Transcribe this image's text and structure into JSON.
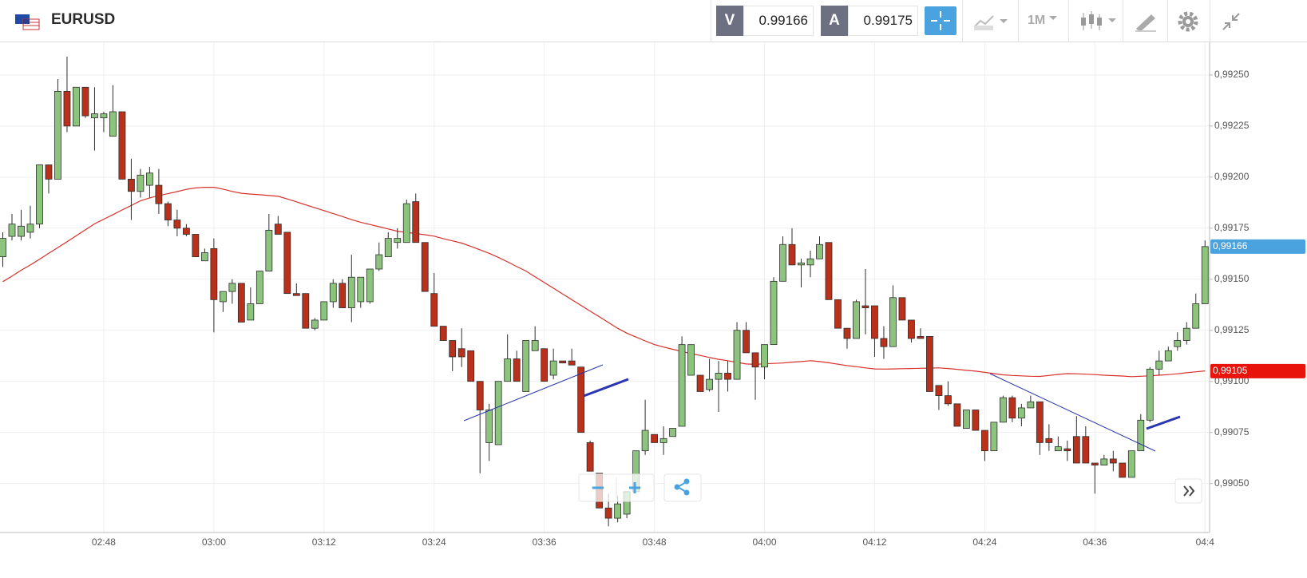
{
  "header": {
    "symbol": "EURUSD",
    "bid_label": "V",
    "bid": "0.99166",
    "ask_label": "A",
    "ask": "0.99175",
    "timeframe": "1M"
  },
  "chart_data": {
    "type": "candlestick",
    "categories": [
      null,
      null,
      null,
      null,
      null,
      null,
      null,
      null,
      null,
      null,
      null,
      "02:48",
      null,
      null,
      null,
      null,
      null,
      null,
      null,
      null,
      null,
      null,
      null,
      "03:00",
      null,
      null,
      null,
      null,
      null,
      null,
      null,
      null,
      null,
      null,
      null,
      "03:12",
      null,
      null,
      null,
      null,
      null,
      null,
      null,
      null,
      null,
      null,
      null,
      "03:24",
      null,
      null,
      null,
      null,
      null,
      null,
      null,
      null,
      null,
      null,
      null,
      "03:36",
      null,
      null,
      null,
      null,
      null,
      null,
      null,
      null,
      null,
      null,
      null,
      "03:48",
      null,
      null,
      null,
      null,
      null,
      null,
      null,
      null,
      null,
      null,
      null,
      "04:00",
      null,
      null,
      null,
      null,
      null,
      null,
      null,
      null,
      null,
      null,
      null,
      "04:12",
      null,
      null,
      null,
      null,
      null,
      null,
      null,
      null,
      null,
      null,
      null,
      "04:24",
      null,
      null,
      null,
      null,
      null,
      null,
      null,
      null,
      null,
      null,
      null,
      "04:36",
      null,
      null,
      null,
      null,
      null,
      null,
      null,
      null,
      null,
      null,
      null,
      "04:4"
    ],
    "open": [
      0.99161,
      0.99171,
      0.99171,
      0.99173,
      0.99177,
      0.99206,
      0.99199,
      0.99242,
      0.99225,
      0.99244,
      0.99229,
      0.99229,
      0.9922,
      0.99232,
      0.99199,
      0.99193,
      0.99196,
      0.99196,
      0.99187,
      0.99179,
      0.99175,
      0.99172,
      0.99159,
      0.99165,
      0.99139,
      0.99144,
      0.99148,
      0.9913,
      0.99138,
      0.99154,
      0.99177,
      0.99173,
      0.99143,
      0.99143,
      0.99126,
      0.9913,
      0.99139,
      0.99148,
      0.99136,
      0.99139,
      0.99139,
      0.99155,
      0.99161,
      0.99168,
      0.99168,
      0.99188,
      0.99168,
      0.99143,
      0.99127,
      0.9912,
      0.99116,
      0.99115,
      0.991,
      0.9907,
      0.99069,
      0.991,
      0.99111,
      0.99095,
      0.99115,
      0.99116,
      0.99103,
      0.9911,
      0.9911,
      0.99107,
      0.9907,
      0.99055,
      0.99038,
      0.99033,
      0.99035,
      0.99046,
      0.99066,
      0.99074,
      0.9907,
      0.99073,
      0.99078,
      0.99103,
      0.99103,
      0.99096,
      0.99101,
      0.99104,
      0.99101,
      0.99125,
      0.99114,
      0.99107,
      0.99118,
      0.99149,
      0.99167,
      0.99157,
      0.99157,
      0.9916,
      0.99168,
      0.9914,
      0.99126,
      0.99121,
      0.99137,
      0.99137,
      0.99121,
      0.99117,
      0.99141,
      0.9913,
      0.99122,
      0.99122,
      0.99098,
      0.99093,
      0.99089,
      0.99077,
      0.99086,
      0.99076,
      0.99066,
      0.9908,
      0.99092,
      0.99082,
      0.99087,
      0.9909,
      0.99072,
      0.99066,
      0.99067,
      0.99073,
      0.99073,
      0.9906,
      0.99059,
      0.99062,
      0.9906,
      0.99053,
      0.99066,
      0.99081,
      0.99106,
      0.9911,
      0.99117,
      0.9912,
      0.99126,
      0.99138
    ],
    "high": [
      0.99173,
      0.99182,
      0.99184,
      0.99186,
      0.99206,
      0.99206,
      0.99248,
      0.99259,
      0.99244,
      0.99244,
      0.99244,
      0.99232,
      0.99245,
      0.99232,
      0.99209,
      0.99204,
      0.99205,
      0.99204,
      0.99188,
      0.99184,
      0.99177,
      0.99172,
      0.99165,
      0.9917,
      0.99144,
      0.9915,
      0.99148,
      0.99146,
      0.99154,
      0.99182,
      0.99181,
      0.99173,
      0.99148,
      0.99143,
      0.99131,
      0.99139,
      0.9915,
      0.9915,
      0.99162,
      0.99151,
      0.99155,
      0.99168,
      0.99173,
      0.99175,
      0.99189,
      0.99192,
      0.99168,
      0.99153,
      0.99127,
      0.9912,
      0.99126,
      0.99115,
      0.991,
      0.99089,
      0.991,
      0.99123,
      0.99115,
      0.9912,
      0.99127,
      0.99116,
      0.99116,
      0.9911,
      0.99116,
      0.99107,
      0.99071,
      0.99055,
      0.99045,
      0.99044,
      0.99046,
      0.99066,
      0.99091,
      0.99074,
      0.99078,
      0.99077,
      0.99122,
      0.99118,
      0.99103,
      0.99111,
      0.9911,
      0.9911,
      0.99129,
      0.99129,
      0.99114,
      0.99118,
      0.99151,
      0.99171,
      0.99175,
      0.9916,
      0.99164,
      0.99171,
      0.99168,
      0.9914,
      0.99126,
      0.9914,
      0.99155,
      0.99137,
      0.99127,
      0.99147,
      0.99141,
      0.9913,
      0.99126,
      0.99122,
      0.99098,
      0.991,
      0.99089,
      0.99086,
      0.99086,
      0.99076,
      0.9908,
      0.99093,
      0.99093,
      0.99089,
      0.99093,
      0.9909,
      0.99079,
      0.99073,
      0.99071,
      0.99083,
      0.99078,
      0.9906,
      0.99064,
      0.99066,
      0.9906,
      0.99066,
      0.99084,
      0.99107,
      0.99115,
      0.99117,
      0.99124,
      0.99129,
      0.99143,
      0.99169
    ],
    "low": [
      0.99156,
      0.99169,
      0.99169,
      0.9917,
      0.99175,
      0.99192,
      0.99199,
      0.99222,
      0.99225,
      0.99229,
      0.99213,
      0.99222,
      0.9922,
      0.99199,
      0.99179,
      0.9919,
      0.9919,
      0.99182,
      0.99176,
      0.99171,
      0.99171,
      0.99161,
      0.99159,
      0.99124,
      0.99134,
      0.99138,
      0.99129,
      0.9913,
      0.99138,
      0.99154,
      0.99172,
      0.99143,
      0.99142,
      0.99126,
      0.99125,
      0.9913,
      0.99136,
      0.99136,
      0.99129,
      0.99136,
      0.99138,
      0.99154,
      0.99161,
      0.99165,
      0.99168,
      0.99168,
      0.99144,
      0.99127,
      0.9912,
      0.99105,
      0.99107,
      0.991,
      0.99055,
      0.99061,
      0.99069,
      0.991,
      0.991,
      0.99095,
      0.99115,
      0.991,
      0.99101,
      0.99109,
      0.99108,
      0.99075,
      0.99056,
      0.99038,
      0.99029,
      0.99031,
      0.99033,
      0.99046,
      0.99064,
      0.9907,
      0.99064,
      0.99073,
      0.99078,
      0.99103,
      0.99095,
      0.99095,
      0.99085,
      0.99095,
      0.99101,
      0.99114,
      0.99091,
      0.99101,
      0.99118,
      0.99149,
      0.99157,
      0.99146,
      0.99151,
      0.9916,
      0.9914,
      0.99126,
      0.99116,
      0.99121,
      0.99123,
      0.99112,
      0.99111,
      0.99117,
      0.9913,
      0.99119,
      0.99121,
      0.99095,
      0.99086,
      0.99088,
      0.99078,
      0.99077,
      0.99076,
      0.99061,
      0.99066,
      0.9908,
      0.9908,
      0.99078,
      0.99087,
      0.99064,
      0.99066,
      0.99066,
      0.99061,
      0.9906,
      0.9906,
      0.99045,
      0.99059,
      0.99056,
      0.99053,
      0.99053,
      0.99066,
      0.9908,
      0.99103,
      0.9911,
      0.99115,
      0.99118,
      0.99126,
      0.99138
    ],
    "close": [
      0.9917,
      0.99177,
      0.99176,
      0.99177,
      0.99206,
      0.99199,
      0.99242,
      0.99225,
      0.99244,
      0.9923,
      0.99231,
      0.99231,
      0.99232,
      0.99199,
      0.99193,
      0.99201,
      0.99202,
      0.99187,
      0.99179,
      0.99175,
      0.99172,
      0.99161,
      0.99163,
      0.9914,
      0.99144,
      0.99148,
      0.99129,
      0.99138,
      0.99154,
      0.99174,
      0.99172,
      0.99143,
      0.99142,
      0.99126,
      0.9913,
      0.99139,
      0.99148,
      0.99136,
      0.99151,
      0.99151,
      0.99155,
      0.99162,
      0.9917,
      0.9917,
      0.99187,
      0.99168,
      0.99144,
      0.99127,
      0.9912,
      0.99112,
      0.99112,
      0.991,
      0.99086,
      0.99086,
      0.991,
      0.99111,
      0.991,
      0.9912,
      0.9912,
      0.991,
      0.9911,
      0.99109,
      0.99108,
      0.99075,
      0.99056,
      0.99038,
      0.99033,
      0.9904,
      0.99046,
      0.99066,
      0.99076,
      0.9907,
      0.99072,
      0.99077,
      0.99118,
      0.99118,
      0.99095,
      0.99101,
      0.99104,
      0.99101,
      0.99125,
      0.99114,
      0.99107,
      0.99118,
      0.99149,
      0.99167,
      0.99157,
      0.99158,
      0.9916,
      0.99167,
      0.9914,
      0.99126,
      0.99121,
      0.99139,
      0.99136,
      0.99121,
      0.99117,
      0.99141,
      0.9913,
      0.99121,
      0.99121,
      0.99095,
      0.99093,
      0.99089,
      0.99078,
      0.99086,
      0.99076,
      0.99066,
      0.9908,
      0.99092,
      0.99082,
      0.99087,
      0.9909,
      0.9907,
      0.9907,
      0.99068,
      0.99066,
      0.9906,
      0.9906,
      0.99059,
      0.99062,
      0.9906,
      0.99053,
      0.99066,
      0.99081,
      0.99106,
      0.9911,
      0.99115,
      0.9912,
      0.99126,
      0.99138,
      0.99166
    ],
    "up_color": "#8cc47e",
    "down_color": "#b9301b",
    "outline_color": "#2e2e2e",
    "ma": {
      "color": "#d8302a",
      "values": [
        0.991488,
        0.991515,
        0.991544,
        0.99157,
        0.991598,
        0.991627,
        0.991655,
        0.991684,
        0.991713,
        0.991742,
        0.991771,
        0.991794,
        0.991816,
        0.991839,
        0.991861,
        0.991884,
        0.991898,
        0.991909,
        0.991919,
        0.991929,
        0.99194,
        0.991947,
        0.99195,
        0.99195,
        0.991941,
        0.99193,
        0.991921,
        0.991917,
        0.991914,
        0.99191,
        0.991906,
        0.991893,
        0.991879,
        0.991864,
        0.99185,
        0.991836,
        0.991821,
        0.991807,
        0.991792,
        0.991779,
        0.991768,
        0.991757,
        0.991746,
        0.991735,
        0.991729,
        0.991724,
        0.991718,
        0.991711,
        0.991699,
        0.991688,
        0.991677,
        0.991661,
        0.991644,
        0.991627,
        0.991607,
        0.991585,
        0.991562,
        0.99154,
        0.991512,
        0.991484,
        0.991456,
        0.991428,
        0.9914,
        0.991372,
        0.991344,
        0.991316,
        0.991288,
        0.99126,
        0.991236,
        0.991217,
        0.991198,
        0.99118,
        0.991168,
        0.991157,
        0.991146,
        0.991136,
        0.991127,
        0.991117,
        0.991108,
        0.991101,
        0.991093,
        0.991085,
        0.991083,
        0.991086,
        0.991088,
        0.99109,
        0.991094,
        0.991097,
        0.991101,
        0.991097,
        0.991091,
        0.991084,
        0.991077,
        0.991072,
        0.991066,
        0.991061,
        0.99106,
        0.991061,
        0.991062,
        0.991063,
        0.991064,
        0.991065,
        0.991066,
        0.991063,
        0.991059,
        0.991054,
        0.99105,
        0.991044,
        0.991038,
        0.991032,
        0.991029,
        0.991027,
        0.991025,
        0.991024,
        0.991029,
        0.991034,
        0.991038,
        0.991037,
        0.991035,
        0.991033,
        0.99103,
        0.991028,
        0.991026,
        0.991023,
        0.991025,
        0.991027,
        0.99103,
        0.991033,
        0.991037,
        0.991042,
        0.991047,
        0.991051
      ]
    },
    "ylim": [
      0.99026,
      0.99266
    ],
    "yticks": [
      {
        "value": 0.9905,
        "label": "0,99050"
      },
      {
        "value": 0.99075,
        "label": "0,99075"
      },
      {
        "value": 0.991,
        "label": "0,99100"
      },
      {
        "value": 0.99125,
        "label": "0,99125"
      },
      {
        "value": 0.9915,
        "label": "0,99150"
      },
      {
        "value": 0.99175,
        "label": "0,99175"
      },
      {
        "value": 0.992,
        "label": "0,99200"
      },
      {
        "value": 0.99225,
        "label": "0,99225"
      },
      {
        "value": 0.9925,
        "label": "0,99250"
      }
    ],
    "grid": true,
    "price_tags": [
      {
        "value": 0.99166,
        "label": "0,99166",
        "color": "#4aa3df"
      },
      {
        "value": 0.99105,
        "label": "0,99105",
        "color": "#e8140c"
      }
    ]
  }
}
